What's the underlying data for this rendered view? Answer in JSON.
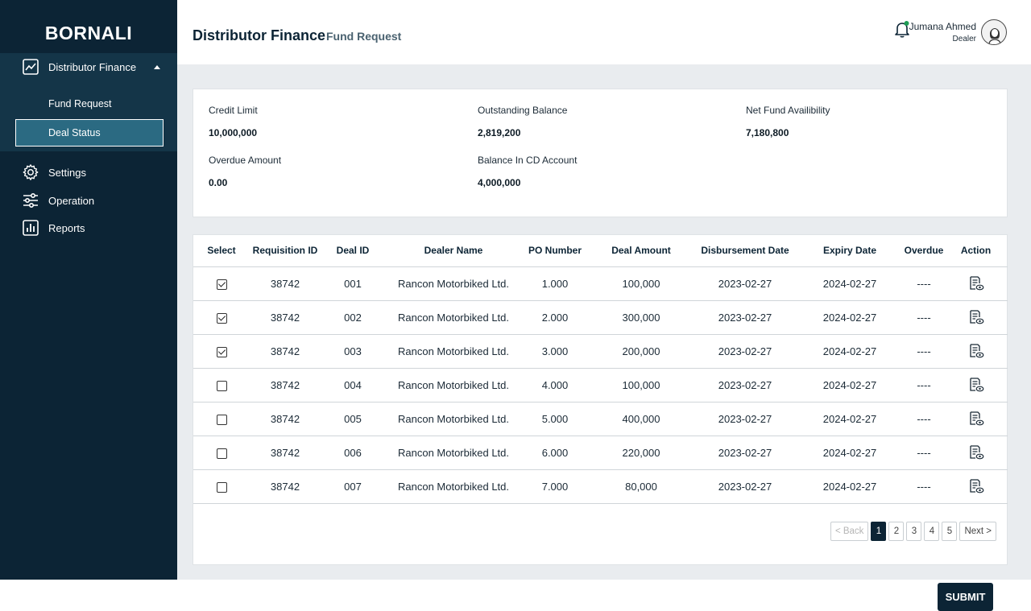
{
  "brand": "BORNALI",
  "sidebar": {
    "items": [
      {
        "label": "Distributor Finance",
        "icon": "chart-line-icon"
      },
      {
        "label": "Settings",
        "icon": "gear-icon"
      },
      {
        "label": "Operation",
        "icon": "sliders-icon"
      },
      {
        "label": "Reports",
        "icon": "bar-chart-icon"
      }
    ],
    "sub_items": [
      {
        "label": "Fund Request"
      },
      {
        "label": "Deal Status",
        "active": true
      }
    ]
  },
  "header": {
    "title": "Distributor Finance",
    "subtitle": "Fund Request",
    "user_name": "Jumana Ahmed",
    "user_role": "Dealer",
    "notification_dot_color": "#1f9d55"
  },
  "summary": {
    "credit_limit_label": "Credit Limit",
    "credit_limit_value": "10,000,000",
    "outstanding_label": "Outstanding Balance",
    "outstanding_value": "2,819,200",
    "net_fund_label": "Net Fund Availibility",
    "net_fund_value": "7,180,800",
    "overdue_label": "Overdue Amount",
    "overdue_value": "0.00",
    "cd_label": "Balance In CD Account",
    "cd_value": "4,000,000"
  },
  "table": {
    "columns": [
      "Select",
      "Requisition ID",
      "Deal ID",
      "Dealer Name",
      "PO Number",
      "Deal Amount",
      "Disbursement Date",
      "Expiry Date",
      "Overdue",
      "Action"
    ],
    "rows": [
      {
        "selected": true,
        "req_id": "38742",
        "deal_id": "001",
        "dealer": "Rancon Motorbiked Ltd.",
        "po": "1.000",
        "amount": "100,000",
        "disb": "2023-02-27",
        "expiry": "2024-02-27",
        "overdue": "----"
      },
      {
        "selected": true,
        "req_id": "38742",
        "deal_id": "002",
        "dealer": "Rancon Motorbiked Ltd.",
        "po": "2.000",
        "amount": "300,000",
        "disb": "2023-02-27",
        "expiry": "2024-02-27",
        "overdue": "----"
      },
      {
        "selected": true,
        "req_id": "38742",
        "deal_id": "003",
        "dealer": "Rancon Motorbiked Ltd.",
        "po": "3.000",
        "amount": "200,000",
        "disb": "2023-02-27",
        "expiry": "2024-02-27",
        "overdue": "----"
      },
      {
        "selected": false,
        "req_id": "38742",
        "deal_id": "004",
        "dealer": "Rancon Motorbiked Ltd.",
        "po": "4.000",
        "amount": "100,000",
        "disb": "2023-02-27",
        "expiry": "2024-02-27",
        "overdue": "----"
      },
      {
        "selected": false,
        "req_id": "38742",
        "deal_id": "005",
        "dealer": "Rancon Motorbiked Ltd.",
        "po": "5.000",
        "amount": "400,000",
        "disb": "2023-02-27",
        "expiry": "2024-02-27",
        "overdue": "----"
      },
      {
        "selected": false,
        "req_id": "38742",
        "deal_id": "006",
        "dealer": "Rancon Motorbiked Ltd.",
        "po": "6.000",
        "amount": "220,000",
        "disb": "2023-02-27",
        "expiry": "2024-02-27",
        "overdue": "----"
      },
      {
        "selected": false,
        "req_id": "38742",
        "deal_id": "007",
        "dealer": "Rancon Motorbiked Ltd.",
        "po": "7.000",
        "amount": "80,000",
        "disb": "2023-02-27",
        "expiry": "2024-02-27",
        "overdue": "----"
      }
    ]
  },
  "pagination": {
    "back": "< Back",
    "next": "Next >",
    "pages": [
      "1",
      "2",
      "3",
      "4",
      "5"
    ],
    "current": "1"
  },
  "submit_label": "SUBMIT"
}
